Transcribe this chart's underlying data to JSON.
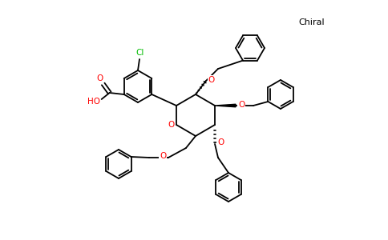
{
  "chiral_label": "Chiral",
  "chiral_label_color": "#000000",
  "chiral_label_fontsize": 8,
  "background_color": "#ffffff",
  "bond_color": "#000000",
  "bond_width": 1.3,
  "atom_colors": {
    "O": "#ff0000",
    "Cl": "#00bb00",
    "C": "#000000"
  },
  "figsize": [
    4.84,
    3.0
  ],
  "dpi": 100
}
